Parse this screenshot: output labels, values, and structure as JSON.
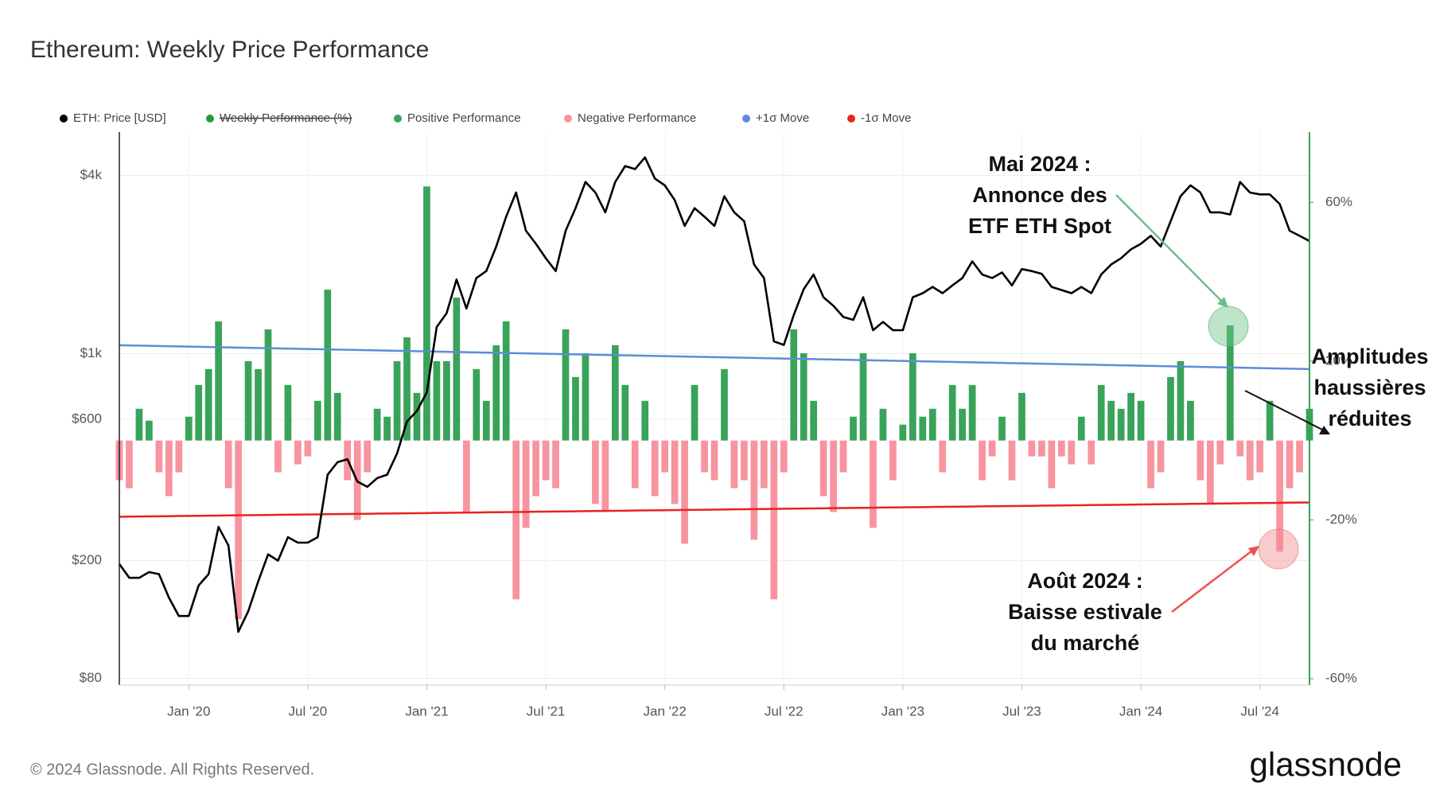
{
  "chart_data": {
    "type": "combo",
    "title": "Ethereum: Weekly Price Performance",
    "categories": [
      null,
      null,
      null,
      null,
      null,
      null,
      null,
      "Jan '20",
      null,
      null,
      null,
      null,
      null,
      null,
      null,
      null,
      null,
      null,
      null,
      "Jul '20",
      null,
      null,
      null,
      null,
      null,
      null,
      null,
      null,
      null,
      null,
      null,
      "Jan '21",
      null,
      null,
      null,
      null,
      null,
      null,
      null,
      null,
      null,
      null,
      null,
      "Jul '21",
      null,
      null,
      null,
      null,
      null,
      null,
      null,
      null,
      null,
      null,
      null,
      "Jan '22",
      null,
      null,
      null,
      null,
      null,
      null,
      null,
      null,
      null,
      null,
      null,
      "Jul '22",
      null,
      null,
      null,
      null,
      null,
      null,
      null,
      null,
      null,
      null,
      null,
      "Jan '23",
      null,
      null,
      null,
      null,
      null,
      null,
      null,
      null,
      null,
      null,
      null,
      "Jul '23",
      null,
      null,
      null,
      null,
      null,
      null,
      null,
      null,
      null,
      null,
      null,
      "Jan '24",
      null,
      null,
      null,
      null,
      null,
      null,
      null,
      null,
      null,
      null,
      null,
      "Jul '24",
      null,
      null,
      null,
      null,
      null
    ],
    "ylim": [
      76,
      5600
    ],
    "yscale": "log",
    "yticks": [
      {
        "value": 80,
        "label": "$80"
      },
      {
        "value": 200,
        "label": "$200"
      },
      {
        "value": 600,
        "label": "$600"
      },
      {
        "value": 1000,
        "label": "$1k"
      },
      {
        "value": 4000,
        "label": "$4k"
      }
    ],
    "y2lim": [
      -61.6,
      77.7
    ],
    "y2ticks": [
      {
        "value": -60,
        "label": "-60%"
      },
      {
        "value": -20,
        "label": "-20%"
      },
      {
        "value": 20,
        "label": "20%"
      },
      {
        "value": 60,
        "label": "60%"
      }
    ],
    "grid": true,
    "legend": "top-left",
    "series": [
      {
        "name": "ETH: Price [USD]",
        "type": "line",
        "color": "#000000",
        "axis": "y",
        "values": [
          195,
          175,
          175,
          183,
          180,
          150,
          130,
          130,
          165,
          180,
          260,
          225,
          115,
          135,
          170,
          210,
          200,
          240,
          230,
          230,
          240,
          390,
          430,
          440,
          370,
          355,
          380,
          390,
          460,
          590,
          640,
          740,
          1230,
          1370,
          1780,
          1420,
          1800,
          1900,
          2300,
          2900,
          3500,
          2600,
          2350,
          2100,
          1900,
          2600,
          3100,
          3800,
          3500,
          3000,
          3800,
          4300,
          4200,
          4600,
          3900,
          3700,
          3300,
          2700,
          3100,
          2900,
          2700,
          3400,
          3000,
          2800,
          2000,
          1800,
          1100,
          1070,
          1350,
          1650,
          1850,
          1550,
          1450,
          1330,
          1300,
          1550,
          1200,
          1280,
          1200,
          1200,
          1550,
          1600,
          1680,
          1600,
          1700,
          1800,
          2050,
          1850,
          1800,
          1880,
          1700,
          1930,
          1900,
          1860,
          1680,
          1640,
          1600,
          1680,
          1600,
          1850,
          2000,
          2100,
          2250,
          2350,
          2500,
          2300,
          2800,
          3400,
          3700,
          3500,
          3000,
          3000,
          2950,
          3800,
          3500,
          3450,
          3450,
          3200,
          2600,
          2500,
          2400
        ]
      },
      {
        "name": "Weekly Performance (%)",
        "type": "bar",
        "color": "#1f9b3a",
        "axis": "y2",
        "hidden": true
      },
      {
        "name": "Positive Performance",
        "type": "bar",
        "color": "#3aa35a",
        "axis": "y2",
        "values": [
          null,
          null,
          8,
          5,
          null,
          null,
          null,
          6,
          14,
          18,
          30,
          null,
          null,
          20,
          18,
          28,
          null,
          14,
          null,
          null,
          10,
          38,
          12,
          null,
          null,
          null,
          8,
          6,
          20,
          26,
          12,
          64,
          20,
          20,
          36,
          null,
          18,
          10,
          24,
          30,
          null,
          null,
          null,
          null,
          null,
          28,
          16,
          22,
          null,
          null,
          24,
          14,
          null,
          10,
          null,
          null,
          null,
          null,
          14,
          null,
          null,
          18,
          null,
          null,
          null,
          null,
          null,
          null,
          28,
          22,
          10,
          null,
          null,
          null,
          6,
          22,
          null,
          8,
          null,
          4,
          22,
          6,
          8,
          null,
          14,
          8,
          14,
          null,
          null,
          6,
          null,
          12,
          null,
          null,
          null,
          null,
          null,
          6,
          null,
          14,
          10,
          8,
          12,
          10,
          null,
          null,
          16,
          20,
          10,
          null,
          null,
          null,
          29,
          null,
          null,
          null,
          10,
          null,
          null,
          null,
          8
        ]
      },
      {
        "name": "Negative Performance",
        "type": "bar",
        "color": "#f7949f",
        "axis": "y2",
        "values": [
          -10,
          -12,
          null,
          null,
          -8,
          -14,
          -8,
          null,
          null,
          null,
          null,
          -12,
          -45,
          null,
          null,
          null,
          -8,
          null,
          -6,
          -4,
          null,
          null,
          null,
          -10,
          -20,
          -8,
          null,
          null,
          null,
          null,
          null,
          null,
          null,
          null,
          null,
          -18,
          null,
          null,
          null,
          null,
          -40,
          -22,
          -14,
          -10,
          -12,
          null,
          null,
          null,
          -16,
          -18,
          null,
          null,
          -12,
          null,
          -14,
          -8,
          -16,
          -26,
          null,
          -8,
          -10,
          null,
          -12,
          -10,
          -25,
          -12,
          -40,
          -8,
          null,
          null,
          null,
          -14,
          -18,
          -8,
          null,
          null,
          -22,
          null,
          -10,
          null,
          null,
          null,
          null,
          -8,
          null,
          null,
          null,
          -10,
          -4,
          null,
          -10,
          null,
          -4,
          -4,
          -12,
          -4,
          -6,
          null,
          -6,
          null,
          null,
          null,
          null,
          null,
          -12,
          -8,
          null,
          null,
          null,
          -10,
          -16,
          -6,
          null,
          -4,
          -10,
          -8,
          null,
          -28,
          -12,
          -8,
          null
        ]
      },
      {
        "name": "+1σ Move",
        "type": "line",
        "color": "#5b8dd9",
        "axis": "y2",
        "values": [
          24,
          23.95,
          23.9,
          23.85,
          23.8,
          23.75,
          23.7,
          23.65,
          23.6,
          23.55,
          23.5,
          23.45,
          23.4,
          23.35,
          23.3,
          23.25,
          23.2,
          23.15,
          23.1,
          23.05,
          23,
          22.95,
          22.9,
          22.85,
          22.8,
          22.75,
          22.7,
          22.65,
          22.6,
          22.55,
          22.5,
          22.45,
          22.4,
          22.35,
          22.3,
          22.25,
          22.2,
          22.15,
          22.1,
          22.05,
          22,
          21.95,
          21.9,
          21.85,
          21.8,
          21.75,
          21.7,
          21.65,
          21.6,
          21.55,
          21.5,
          21.45,
          21.4,
          21.35,
          21.3,
          21.25,
          21.2,
          21.15,
          21.1,
          21.05,
          21,
          20.95,
          20.9,
          20.85,
          20.8,
          20.75,
          20.7,
          20.65,
          20.6,
          20.55,
          20.5,
          20.45,
          20.4,
          20.35,
          20.3,
          20.25,
          20.2,
          20.15,
          20.1,
          20.05,
          20,
          19.95,
          19.9,
          19.85,
          19.8,
          19.75,
          19.7,
          19.65,
          19.6,
          19.55,
          19.5,
          19.45,
          19.4,
          19.35,
          19.3,
          19.25,
          19.2,
          19.15,
          19.1,
          19.05,
          19,
          18.95,
          18.9,
          18.85,
          18.8,
          18.75,
          18.7,
          18.65,
          18.6,
          18.55,
          18.5,
          18.45,
          18.4,
          18.35,
          18.3,
          18.25,
          18.2,
          18.15,
          18.1,
          18.05,
          18
        ]
      },
      {
        "name": "-1σ Move",
        "type": "line",
        "color": "#e8231f",
        "axis": "y2",
        "values": [
          -19.2,
          -19.17,
          -19.14,
          -19.11,
          -19.08,
          -19.05,
          -19.02,
          -18.99,
          -18.96,
          -18.93,
          -18.9,
          -18.87,
          -18.84,
          -18.81,
          -18.78,
          -18.75,
          -18.72,
          -18.69,
          -18.66,
          -18.63,
          -18.6,
          -18.57,
          -18.54,
          -18.51,
          -18.48,
          -18.45,
          -18.42,
          -18.39,
          -18.36,
          -18.33,
          -18.3,
          -18.27,
          -18.24,
          -18.21,
          -18.18,
          -18.15,
          -18.12,
          -18.09,
          -18.06,
          -18.03,
          -18,
          -17.97,
          -17.94,
          -17.91,
          -17.88,
          -17.85,
          -17.82,
          -17.79,
          -17.76,
          -17.73,
          -17.7,
          -17.67,
          -17.64,
          -17.61,
          -17.58,
          -17.55,
          -17.52,
          -17.49,
          -17.46,
          -17.43,
          -17.4,
          -17.37,
          -17.34,
          -17.31,
          -17.28,
          -17.25,
          -17.22,
          -17.19,
          -17.16,
          -17.13,
          -17.1,
          -17.07,
          -17.04,
          -17.01,
          -16.98,
          -16.95,
          -16.92,
          -16.89,
          -16.86,
          -16.83,
          -16.8,
          -16.77,
          -16.74,
          -16.71,
          -16.68,
          -16.65,
          -16.62,
          -16.59,
          -16.56,
          -16.53,
          -16.5,
          -16.47,
          -16.44,
          -16.41,
          -16.38,
          -16.35,
          -16.32,
          -16.29,
          -16.26,
          -16.23,
          -16.2,
          -16.17,
          -16.14,
          -16.11,
          -16.08,
          -16.05,
          -16.02,
          -15.99,
          -15.96,
          -15.93,
          -15.9,
          -15.87,
          -15.84,
          -15.81,
          -15.78,
          -15.75,
          -15.72,
          -15.69,
          -15.66,
          -15.63,
          -15.6
        ]
      }
    ],
    "annotations": [
      {
        "lines": [
          "Mai 2024 :",
          "Annonce des",
          "ETF ETH Spot"
        ]
      },
      {
        "lines": [
          "Août 2024 :",
          "Baisse estivale",
          "du marché"
        ]
      },
      {
        "lines": [
          "Amplitudes",
          "haussières",
          "réduites"
        ]
      }
    ]
  },
  "copyright": "© 2024 Glassnode. All Rights Reserved.",
  "brand": "glassnode"
}
